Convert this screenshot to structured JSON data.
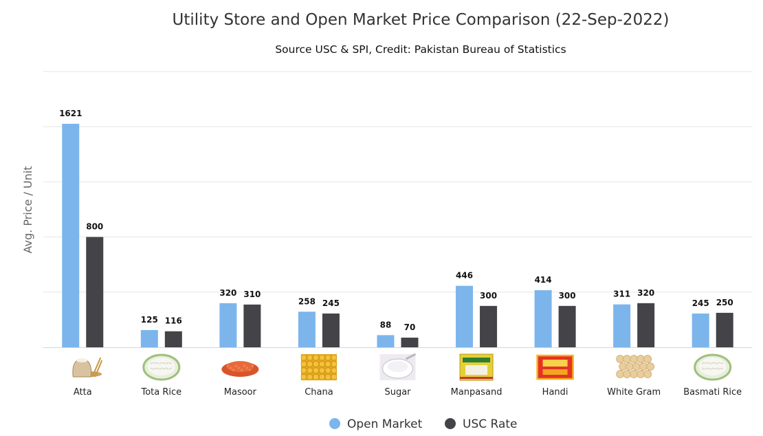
{
  "chart_data": {
    "type": "bar",
    "title": "Utility Store and Open Market Price Comparison (22-Sep-2022)",
    "subtitle": "Source USC & SPI, Credit: Pakistan Bureau of Statistics",
    "ylabel": "Avg. Price / Unit",
    "xlabel": "",
    "ylim": [
      0,
      2000
    ],
    "grid": true,
    "legend": "bottom",
    "categories": [
      "Atta",
      "Tota Rice",
      "Masoor",
      "Chana",
      "Sugar",
      "Manpasand",
      "Handi",
      "White Gram",
      "Basmati Rice"
    ],
    "category_icons": [
      "flour-sack-icon",
      "rice-bowl-icon",
      "lentils-icon",
      "chana-icon",
      "sugar-bowl-icon",
      "manpasand-pack-icon",
      "handi-pack-icon",
      "white-gram-icon",
      "basmati-rice-icon"
    ],
    "series": [
      {
        "name": "Open Market",
        "color": "#7cb5ec",
        "values": [
          1621,
          125,
          320,
          258,
          88,
          446,
          414,
          311,
          245
        ]
      },
      {
        "name": "USC Rate",
        "color": "#434348",
        "values": [
          800,
          116,
          310,
          245,
          70,
          300,
          300,
          320,
          250
        ]
      }
    ]
  }
}
